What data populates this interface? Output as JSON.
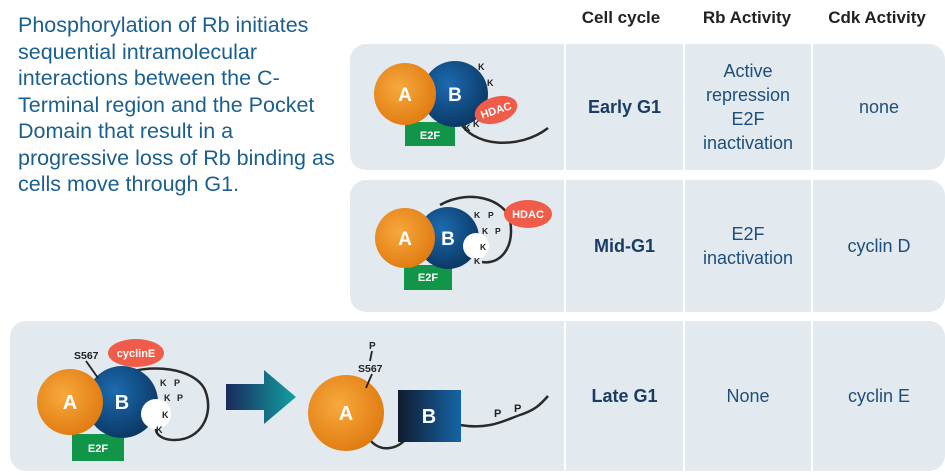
{
  "intro_text": "Phosphorylation of Rb initiates sequential intramolecular interactions between the C-Terminal region and the Pocket Domain that result in a progressive loss of Rb binding as cells move through G1.",
  "headers": {
    "cell_cycle": "Cell cycle",
    "rb_activity": "Rb Activity",
    "cdk_activity": "Cdk Activity"
  },
  "rows": [
    {
      "cell_cycle": "Early G1",
      "rb_activity": "Active repression E2F inactivation",
      "cdk_activity": "none"
    },
    {
      "cell_cycle": "Mid-G1",
      "rb_activity": "E2F inactivation",
      "cdk_activity": "cyclin D"
    },
    {
      "cell_cycle": "Late G1",
      "rb_activity": "None",
      "cdk_activity": "cyclin E"
    }
  ],
  "labels": {
    "domain_a": "A",
    "domain_b": "B",
    "e2f": "E2F",
    "hdac": "HDAC",
    "cycline": "cyclinE",
    "s567": "S567",
    "k": "K",
    "p": "P"
  },
  "colors": {
    "title_blue": "#1b5f8f",
    "panel": "#e2e9ef",
    "domain_a": "#f08c1e",
    "domain_b": "#0e4d8a",
    "e2f": "#119548",
    "hdac": "#ef5c4a",
    "arrow": "#12969b"
  }
}
